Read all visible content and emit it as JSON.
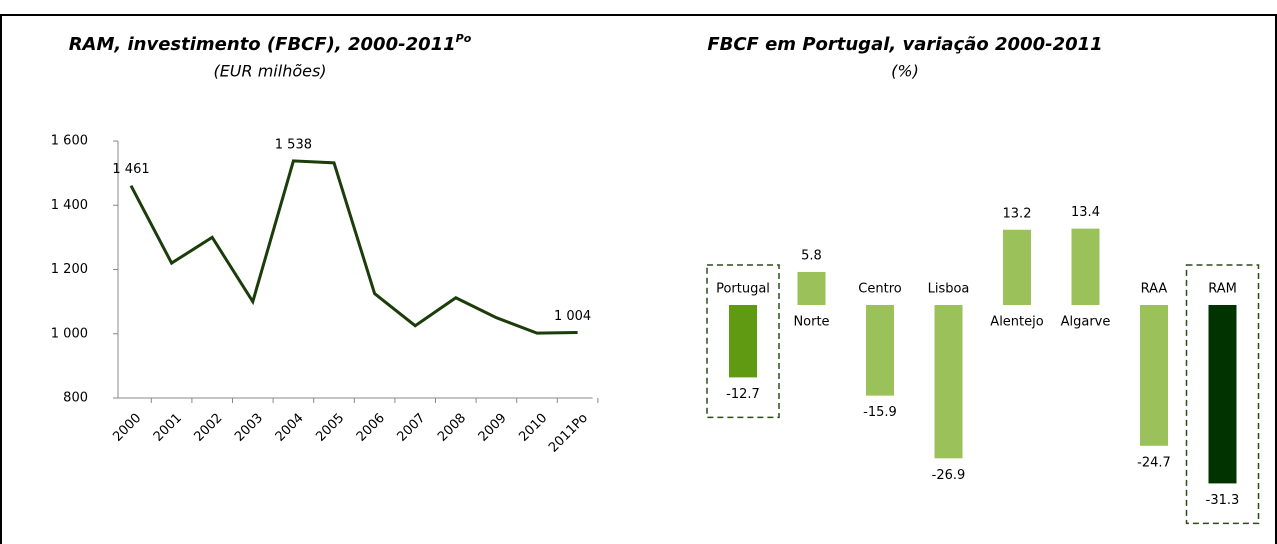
{
  "chart_data": [
    {
      "type": "line",
      "title": "RAM, investimento (FBCF), 2000-2011",
      "title_superscript": "Po",
      "subtitle": "(EUR milhões)",
      "categories": [
        "2000",
        "2001",
        "2002",
        "2003",
        "2004",
        "2005",
        "2006",
        "2007",
        "2008",
        "2009",
        "2010",
        "2011Po"
      ],
      "values": [
        1461,
        1220,
        1300,
        1100,
        1538,
        1532,
        1125,
        1025,
        1112,
        1050,
        1002,
        1004
      ],
      "value_labels": [
        "1 461",
        null,
        null,
        null,
        "1 538",
        null,
        null,
        null,
        null,
        null,
        null,
        "1 004"
      ],
      "color": "#1a3d0a",
      "ylim": [
        800,
        1600
      ],
      "yticks": [
        {
          "value": 800,
          "label": "800"
        },
        {
          "value": 1000,
          "label": "1 000"
        },
        {
          "value": 1200,
          "label": "1 200"
        },
        {
          "value": 1400,
          "label": "1 400"
        },
        {
          "value": 1600,
          "label": "1 600"
        }
      ]
    },
    {
      "type": "bar",
      "title": "FBCF em Portugal, variação 2000-2011",
      "subtitle": "(%)",
      "categories": [
        "Portugal",
        "Norte",
        "Centro",
        "Lisboa",
        "Alentejo",
        "Algarve",
        "RAA",
        "RAM"
      ],
      "values": [
        -12.7,
        5.8,
        -15.9,
        -26.9,
        13.2,
        13.4,
        -24.7,
        -31.3
      ],
      "colors": [
        "#5f9a12",
        "#9bc25a",
        "#9bc25a",
        "#9bc25a",
        "#9bc25a",
        "#9bc25a",
        "#9bc25a",
        "#003300"
      ],
      "highlighted": [
        0,
        7
      ]
    }
  ]
}
